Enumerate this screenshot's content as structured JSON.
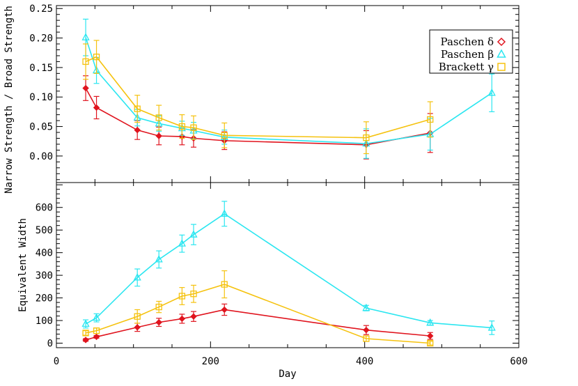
{
  "chart_data": [
    {
      "type": "line",
      "panel": "top",
      "ylabel": "Narrow Strength / Broad Strength",
      "ylim": [
        -0.045,
        0.255
      ],
      "xlim": [
        0,
        600
      ],
      "yticks": [
        0.0,
        0.05,
        0.1,
        0.15,
        0.2,
        0.25
      ],
      "ytick_labels": [
        "0.00",
        "0.05",
        "0.10",
        "0.15",
        "0.20",
        "0.25"
      ],
      "legend": {
        "placement": "top-right",
        "entries": [
          {
            "label": "Paschen δ",
            "series": 0,
            "marker": "◇"
          },
          {
            "label": "Paschen β",
            "series": 1,
            "marker": "△"
          },
          {
            "label": "Brackett γ",
            "series": 2,
            "marker": "□"
          }
        ]
      },
      "series": [
        {
          "name": "Paschen δ",
          "color": "#e0141e",
          "marker": "diamond",
          "x": [
            38,
            52,
            105,
            133,
            163,
            178,
            218,
            402,
            485
          ],
          "y": [
            0.115,
            0.082,
            0.044,
            0.034,
            0.033,
            0.03,
            0.026,
            0.019,
            0.039
          ],
          "err": [
            0.021,
            0.019,
            0.016,
            0.015,
            0.014,
            0.015,
            0.015,
            0.024,
            0.033
          ]
        },
        {
          "name": "Paschen β",
          "color": "#2be6f0",
          "marker": "triangle",
          "x": [
            38,
            52,
            105,
            133,
            163,
            178,
            218,
            402,
            485,
            565
          ],
          "y": [
            0.201,
            0.145,
            0.065,
            0.055,
            0.047,
            0.043,
            0.032,
            0.021,
            0.037,
            0.107
          ],
          "err": [
            0.031,
            0.022,
            0.014,
            0.013,
            0.012,
            0.014,
            0.012,
            0.025,
            0.027,
            0.032
          ]
        },
        {
          "name": "Brackett γ",
          "color": "#f5c20e",
          "marker": "square",
          "x": [
            38,
            52,
            105,
            133,
            163,
            178,
            218,
            402,
            485
          ],
          "y": [
            0.16,
            0.168,
            0.08,
            0.065,
            0.05,
            0.048,
            0.035,
            0.031,
            0.062
          ],
          "err": [
            0.03,
            0.028,
            0.023,
            0.021,
            0.02,
            0.02,
            0.021,
            0.027,
            0.03
          ]
        }
      ]
    },
    {
      "type": "line",
      "panel": "bottom",
      "xlabel": "Day",
      "ylabel": "Equivalent Width",
      "ylim": [
        -20,
        710
      ],
      "xlim": [
        0,
        600
      ],
      "xticks": [
        0,
        200,
        400,
        600
      ],
      "xtick_labels": [
        "0",
        "200",
        "400",
        "600"
      ],
      "yticks": [
        0,
        100,
        200,
        300,
        400,
        500,
        600
      ],
      "ytick_labels": [
        "0",
        "100",
        "200",
        "300",
        "400",
        "500",
        "600"
      ],
      "series": [
        {
          "name": "Paschen δ",
          "color": "#e0141e",
          "marker": "diamond",
          "x": [
            38,
            52,
            105,
            133,
            163,
            178,
            218,
            402,
            485
          ],
          "y": [
            14,
            28,
            70,
            92,
            108,
            118,
            148,
            58,
            32
          ],
          "err": [
            6,
            6,
            18,
            18,
            20,
            22,
            25,
            20,
            15
          ]
        },
        {
          "name": "Paschen β",
          "color": "#2be6f0",
          "marker": "triangle",
          "x": [
            38,
            52,
            105,
            133,
            163,
            178,
            218,
            402,
            485,
            565
          ],
          "y": [
            85,
            112,
            290,
            370,
            440,
            480,
            572,
            155,
            90,
            68
          ],
          "err": [
            18,
            18,
            38,
            38,
            38,
            45,
            55,
            12,
            10,
            30
          ]
        },
        {
          "name": "Brackett γ",
          "color": "#f5c20e",
          "marker": "square",
          "x": [
            38,
            52,
            105,
            133,
            163,
            178,
            218,
            402,
            485
          ],
          "y": [
            45,
            55,
            118,
            160,
            208,
            218,
            260,
            20,
            0
          ],
          "err": [
            10,
            12,
            30,
            25,
            38,
            38,
            60,
            12,
            8
          ]
        }
      ]
    }
  ]
}
